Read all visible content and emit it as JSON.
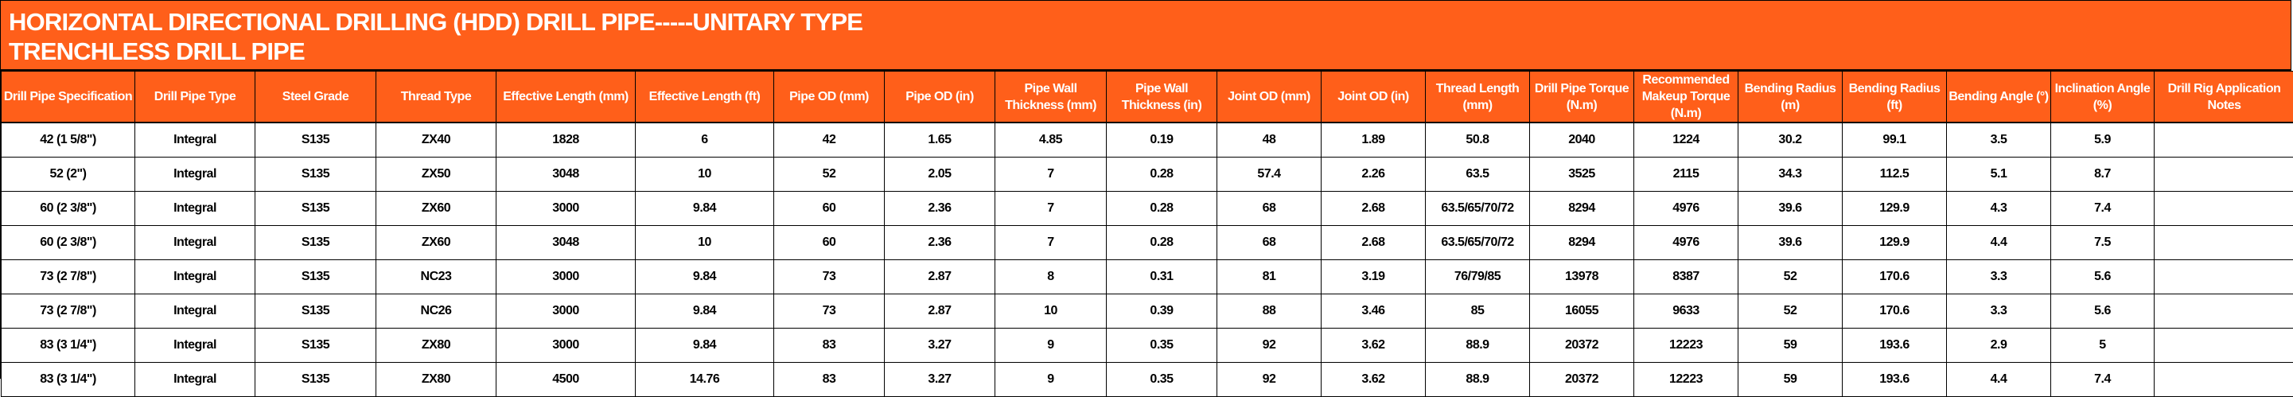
{
  "title": {
    "line1": "HORIZONTAL DIRECTIONAL DRILLING (HDD) DRILL PIPE-----UNITARY TYPE",
    "line2": "TRENCHLESS DRILL PIPE"
  },
  "colors": {
    "header_bg": "#FF5F1A",
    "header_text": "#FFFFFF",
    "body_text": "#000000"
  },
  "columns": [
    "Drill Pipe Specification",
    "Drill Pipe Type",
    "Steel Grade",
    "Thread Type",
    "Effective Length (mm)",
    "Effective Length (ft)",
    "Pipe OD (mm)",
    "Pipe OD (in)",
    "Pipe Wall Thickness (mm)",
    "Pipe Wall Thickness (in)",
    "Joint OD (mm)",
    "Joint OD (in)",
    "Thread Length (mm)",
    "Drill Pipe Torque (N.m)",
    "Recommended Makeup Torque (N.m)",
    "Bending Radius (m)",
    "Bending Radius (ft)",
    "Bending Angle (°)",
    "Inclination Angle (%)",
    "Drill Rig Application Notes"
  ],
  "rows": [
    [
      "42 (1 5/8\")",
      "Integral",
      "S135",
      "ZX40",
      "1828",
      "6",
      "42",
      "1.65",
      "4.85",
      "0.19",
      "48",
      "1.89",
      "50.8",
      "2040",
      "1224",
      "30.2",
      "99.1",
      "3.5",
      "5.9",
      ""
    ],
    [
      "52 (2\")",
      "Integral",
      "S135",
      "ZX50",
      "3048",
      "10",
      "52",
      "2.05",
      "7",
      "0.28",
      "57.4",
      "2.26",
      "63.5",
      "3525",
      "2115",
      "34.3",
      "112.5",
      "5.1",
      "8.7",
      ""
    ],
    [
      "60 (2 3/8\")",
      "Integral",
      "S135",
      "ZX60",
      "3000",
      "9.84",
      "60",
      "2.36",
      "7",
      "0.28",
      "68",
      "2.68",
      "63.5/65/70/72",
      "8294",
      "4976",
      "39.6",
      "129.9",
      "4.3",
      "7.4",
      ""
    ],
    [
      "60 (2 3/8\")",
      "Integral",
      "S135",
      "ZX60",
      "3048",
      "10",
      "60",
      "2.36",
      "7",
      "0.28",
      "68",
      "2.68",
      "63.5/65/70/72",
      "8294",
      "4976",
      "39.6",
      "129.9",
      "4.4",
      "7.5",
      ""
    ],
    [
      "73 (2 7/8\")",
      "Integral",
      "S135",
      "NC23",
      "3000",
      "9.84",
      "73",
      "2.87",
      "8",
      "0.31",
      "81",
      "3.19",
      "76/79/85",
      "13978",
      "8387",
      "52",
      "170.6",
      "3.3",
      "5.6",
      ""
    ],
    [
      "73 (2 7/8\")",
      "Integral",
      "S135",
      "NC26",
      "3000",
      "9.84",
      "73",
      "2.87",
      "10",
      "0.39",
      "88",
      "3.46",
      "85",
      "16055",
      "9633",
      "52",
      "170.6",
      "3.3",
      "5.6",
      ""
    ],
    [
      "83 (3 1/4\")",
      "Integral",
      "S135",
      "ZX80",
      "3000",
      "9.84",
      "83",
      "3.27",
      "9",
      "0.35",
      "92",
      "3.62",
      "88.9",
      "20372",
      "12223",
      "59",
      "193.6",
      "2.9",
      "5",
      ""
    ],
    [
      "83 (3 1/4\")",
      "Integral",
      "S135",
      "ZX80",
      "4500",
      "14.76",
      "83",
      "3.27",
      "9",
      "0.35",
      "92",
      "3.62",
      "88.9",
      "20372",
      "12223",
      "59",
      "193.6",
      "4.4",
      "7.4",
      ""
    ]
  ]
}
